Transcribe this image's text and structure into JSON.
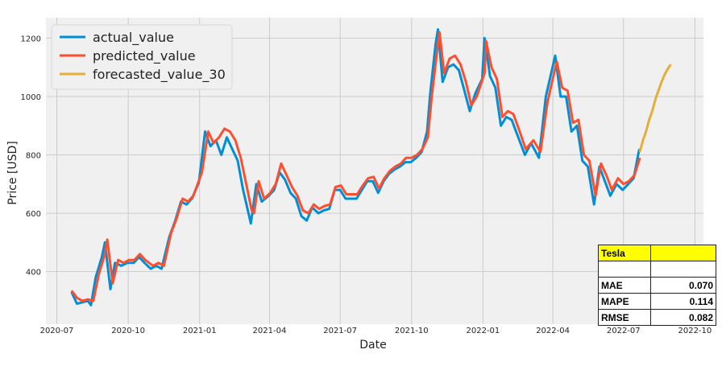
{
  "chart_data": {
    "type": "line",
    "title": "",
    "xlabel": "Date",
    "ylabel": "Price [USD]",
    "ylim": [
      220,
      1270
    ],
    "y_ticks": [
      400,
      600,
      800,
      1000,
      1200
    ],
    "x_ticks": [
      "2020-07",
      "2020-10",
      "2021-01",
      "2021-04",
      "2021-07",
      "2021-10",
      "2022-01",
      "2022-04",
      "2022-07",
      "2022-10"
    ],
    "x_range": [
      "2020-06-17",
      "2022-10-12"
    ],
    "grid": true,
    "legend_position": "top-left",
    "series": [
      {
        "name": "actual_value",
        "color": "#008fd5",
        "points": [
          [
            "2020-07-20",
            330
          ],
          [
            "2020-07-27",
            290
          ],
          [
            "2020-08-03",
            295
          ],
          [
            "2020-08-10",
            300
          ],
          [
            "2020-08-14",
            285
          ],
          [
            "2020-08-20",
            380
          ],
          [
            "2020-08-28",
            450
          ],
          [
            "2020-09-01",
            500
          ],
          [
            "2020-09-08",
            340
          ],
          [
            "2020-09-14",
            430
          ],
          [
            "2020-09-22",
            420
          ],
          [
            "2020-09-30",
            430
          ],
          [
            "2020-10-08",
            430
          ],
          [
            "2020-10-15",
            450
          ],
          [
            "2020-10-22",
            430
          ],
          [
            "2020-10-30",
            410
          ],
          [
            "2020-11-06",
            420
          ],
          [
            "2020-11-13",
            410
          ],
          [
            "2020-11-23",
            520
          ],
          [
            "2020-11-30",
            570
          ],
          [
            "2020-12-08",
            640
          ],
          [
            "2020-12-15",
            630
          ],
          [
            "2020-12-22",
            650
          ],
          [
            "2020-12-31",
            705
          ],
          [
            "2021-01-08",
            880
          ],
          [
            "2021-01-15",
            830
          ],
          [
            "2021-01-22",
            850
          ],
          [
            "2021-01-29",
            800
          ],
          [
            "2021-02-05",
            860
          ],
          [
            "2021-02-12",
            820
          ],
          [
            "2021-02-19",
            780
          ],
          [
            "2021-02-26",
            680
          ],
          [
            "2021-03-05",
            600
          ],
          [
            "2021-03-08",
            565
          ],
          [
            "2021-03-15",
            700
          ],
          [
            "2021-03-22",
            640
          ],
          [
            "2021-03-31",
            660
          ],
          [
            "2021-04-07",
            680
          ],
          [
            "2021-04-14",
            740
          ],
          [
            "2021-04-21",
            715
          ],
          [
            "2021-04-28",
            670
          ],
          [
            "2021-05-05",
            650
          ],
          [
            "2021-05-12",
            590
          ],
          [
            "2021-05-19",
            575
          ],
          [
            "2021-05-26",
            620
          ],
          [
            "2021-06-03",
            600
          ],
          [
            "2021-06-10",
            610
          ],
          [
            "2021-06-17",
            615
          ],
          [
            "2021-06-24",
            680
          ],
          [
            "2021-07-01",
            680
          ],
          [
            "2021-07-08",
            650
          ],
          [
            "2021-07-15",
            650
          ],
          [
            "2021-07-22",
            650
          ],
          [
            "2021-07-29",
            680
          ],
          [
            "2021-08-05",
            710
          ],
          [
            "2021-08-12",
            710
          ],
          [
            "2021-08-19",
            670
          ],
          [
            "2021-08-26",
            710
          ],
          [
            "2021-09-02",
            735
          ],
          [
            "2021-09-09",
            750
          ],
          [
            "2021-09-16",
            760
          ],
          [
            "2021-09-23",
            775
          ],
          [
            "2021-09-30",
            775
          ],
          [
            "2021-10-07",
            790
          ],
          [
            "2021-10-14",
            810
          ],
          [
            "2021-10-21",
            880
          ],
          [
            "2021-10-25",
            1010
          ],
          [
            "2021-11-01",
            1180
          ],
          [
            "2021-11-04",
            1230
          ],
          [
            "2021-11-10",
            1050
          ],
          [
            "2021-11-17",
            1100
          ],
          [
            "2021-11-24",
            1110
          ],
          [
            "2021-12-01",
            1090
          ],
          [
            "2021-12-08",
            1020
          ],
          [
            "2021-12-15",
            950
          ],
          [
            "2021-12-22",
            1010
          ],
          [
            "2021-12-31",
            1060
          ],
          [
            "2022-01-03",
            1200
          ],
          [
            "2022-01-10",
            1070
          ],
          [
            "2022-01-17",
            1030
          ],
          [
            "2022-01-24",
            900
          ],
          [
            "2022-01-31",
            930
          ],
          [
            "2022-02-07",
            920
          ],
          [
            "2022-02-14",
            870
          ],
          [
            "2022-02-24",
            800
          ],
          [
            "2022-03-04",
            840
          ],
          [
            "2022-03-14",
            790
          ],
          [
            "2022-03-23",
            1000
          ],
          [
            "2022-04-04",
            1140
          ],
          [
            "2022-04-11",
            1000
          ],
          [
            "2022-04-18",
            1000
          ],
          [
            "2022-04-25",
            880
          ],
          [
            "2022-05-02",
            900
          ],
          [
            "2022-05-09",
            780
          ],
          [
            "2022-05-16",
            760
          ],
          [
            "2022-05-24",
            630
          ],
          [
            "2022-05-31",
            760
          ],
          [
            "2022-06-07",
            710
          ],
          [
            "2022-06-14",
            660
          ],
          [
            "2022-06-22",
            700
          ],
          [
            "2022-06-30",
            680
          ],
          [
            "2022-07-07",
            700
          ],
          [
            "2022-07-14",
            720
          ],
          [
            "2022-07-21",
            815
          ],
          [
            "2022-07-22",
            820
          ]
        ]
      },
      {
        "name": "predicted_value",
        "color": "#fc4f30",
        "points": [
          [
            "2020-07-20",
            335
          ],
          [
            "2020-07-27",
            310
          ],
          [
            "2020-08-03",
            300
          ],
          [
            "2020-08-10",
            305
          ],
          [
            "2020-08-17",
            300
          ],
          [
            "2020-08-24",
            390
          ],
          [
            "2020-09-01",
            460
          ],
          [
            "2020-09-04",
            510
          ],
          [
            "2020-09-11",
            360
          ],
          [
            "2020-09-18",
            440
          ],
          [
            "2020-09-25",
            430
          ],
          [
            "2020-10-02",
            440
          ],
          [
            "2020-10-09",
            440
          ],
          [
            "2020-10-16",
            460
          ],
          [
            "2020-10-23",
            440
          ],
          [
            "2020-11-02",
            420
          ],
          [
            "2020-11-09",
            430
          ],
          [
            "2020-11-16",
            420
          ],
          [
            "2020-11-25",
            530
          ],
          [
            "2020-12-02",
            580
          ],
          [
            "2020-12-10",
            650
          ],
          [
            "2020-12-17",
            640
          ],
          [
            "2020-12-24",
            660
          ],
          [
            "2021-01-04",
            740
          ],
          [
            "2021-01-12",
            880
          ],
          [
            "2021-01-19",
            840
          ],
          [
            "2021-01-26",
            860
          ],
          [
            "2021-02-02",
            890
          ],
          [
            "2021-02-09",
            880
          ],
          [
            "2021-02-16",
            850
          ],
          [
            "2021-02-23",
            790
          ],
          [
            "2021-03-02",
            700
          ],
          [
            "2021-03-09",
            610
          ],
          [
            "2021-03-12",
            600
          ],
          [
            "2021-03-18",
            710
          ],
          [
            "2021-03-25",
            650
          ],
          [
            "2021-04-02",
            670
          ],
          [
            "2021-04-09",
            700
          ],
          [
            "2021-04-16",
            770
          ],
          [
            "2021-04-23",
            730
          ],
          [
            "2021-04-30",
            690
          ],
          [
            "2021-05-07",
            660
          ],
          [
            "2021-05-14",
            610
          ],
          [
            "2021-05-21",
            600
          ],
          [
            "2021-05-28",
            630
          ],
          [
            "2021-06-04",
            615
          ],
          [
            "2021-06-11",
            625
          ],
          [
            "2021-06-18",
            630
          ],
          [
            "2021-06-25",
            690
          ],
          [
            "2021-07-02",
            695
          ],
          [
            "2021-07-09",
            665
          ],
          [
            "2021-07-16",
            665
          ],
          [
            "2021-07-23",
            665
          ],
          [
            "2021-07-30",
            695
          ],
          [
            "2021-08-06",
            720
          ],
          [
            "2021-08-13",
            725
          ],
          [
            "2021-08-20",
            685
          ],
          [
            "2021-08-27",
            720
          ],
          [
            "2021-09-03",
            745
          ],
          [
            "2021-09-10",
            760
          ],
          [
            "2021-09-17",
            770
          ],
          [
            "2021-09-24",
            790
          ],
          [
            "2021-10-01",
            790
          ],
          [
            "2021-10-08",
            800
          ],
          [
            "2021-10-15",
            820
          ],
          [
            "2021-10-22",
            860
          ],
          [
            "2021-10-27",
            1000
          ],
          [
            "2021-11-03",
            1160
          ],
          [
            "2021-11-06",
            1220
          ],
          [
            "2021-11-12",
            1080
          ],
          [
            "2021-11-19",
            1130
          ],
          [
            "2021-11-26",
            1140
          ],
          [
            "2021-12-03",
            1110
          ],
          [
            "2021-12-10",
            1050
          ],
          [
            "2021-12-17",
            970
          ],
          [
            "2021-12-24",
            1000
          ],
          [
            "2022-01-03",
            1080
          ],
          [
            "2022-01-05",
            1190
          ],
          [
            "2022-01-12",
            1100
          ],
          [
            "2022-01-19",
            1060
          ],
          [
            "2022-01-26",
            930
          ],
          [
            "2022-02-02",
            950
          ],
          [
            "2022-02-09",
            940
          ],
          [
            "2022-02-16",
            890
          ],
          [
            "2022-02-25",
            820
          ],
          [
            "2022-03-07",
            850
          ],
          [
            "2022-03-16",
            810
          ],
          [
            "2022-03-25",
            980
          ],
          [
            "2022-04-06",
            1120
          ],
          [
            "2022-04-13",
            1030
          ],
          [
            "2022-04-20",
            1020
          ],
          [
            "2022-04-27",
            910
          ],
          [
            "2022-05-04",
            920
          ],
          [
            "2022-05-11",
            800
          ],
          [
            "2022-05-18",
            780
          ],
          [
            "2022-05-26",
            660
          ],
          [
            "2022-06-02",
            770
          ],
          [
            "2022-06-09",
            730
          ],
          [
            "2022-06-16",
            680
          ],
          [
            "2022-06-24",
            720
          ],
          [
            "2022-07-01",
            700
          ],
          [
            "2022-07-08",
            710
          ],
          [
            "2022-07-15",
            730
          ],
          [
            "2022-07-21",
            780
          ],
          [
            "2022-07-22",
            790
          ]
        ]
      },
      {
        "name": "forecasted_value_30",
        "color": "#e5ae38",
        "points": [
          [
            "2022-07-22",
            810
          ],
          [
            "2022-07-26",
            850
          ],
          [
            "2022-07-30",
            880
          ],
          [
            "2022-08-03",
            920
          ],
          [
            "2022-08-07",
            950
          ],
          [
            "2022-08-11",
            990
          ],
          [
            "2022-08-15",
            1020
          ],
          [
            "2022-08-19",
            1050
          ],
          [
            "2022-08-23",
            1075
          ],
          [
            "2022-08-27",
            1095
          ],
          [
            "2022-08-31",
            1110
          ]
        ]
      }
    ]
  },
  "metrics_table": {
    "header": [
      "Tesla",
      ""
    ],
    "spacer": [
      "",
      ""
    ],
    "rows": [
      {
        "label": "MAE",
        "value": "0.070"
      },
      {
        "label": "MAPE",
        "value": "0.114"
      },
      {
        "label": "RMSE",
        "value": "0.082"
      }
    ]
  },
  "colors": {
    "plot_background": "#f0f0f0",
    "grid": "#cbcbcb",
    "table_header": "#ffff00"
  }
}
